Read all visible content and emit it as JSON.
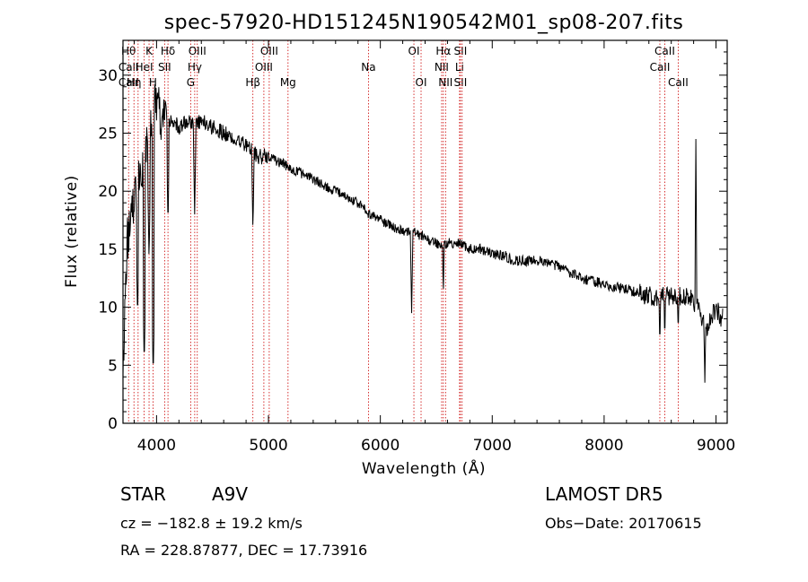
{
  "chart_data": {
    "type": "line",
    "title": "spec-57920-HD151245N190542M01_sp08-207.fits",
    "xlabel": "Wavelength (Å)",
    "ylabel": "Flux (relative)",
    "xlim": [
      3700,
      9100
    ],
    "ylim": [
      0,
      33
    ],
    "x_ticks": [
      4000,
      5000,
      6000,
      7000,
      8000,
      9000
    ],
    "y_ticks": [
      0,
      5,
      10,
      15,
      20,
      25,
      30
    ],
    "grid": false,
    "continuum": [
      [
        3700,
        4
      ],
      [
        3740,
        16
      ],
      [
        3780,
        19
      ],
      [
        3820,
        20
      ],
      [
        3860,
        21
      ],
      [
        3900,
        23
      ],
      [
        3940,
        26
      ],
      [
        3980,
        27
      ],
      [
        4020,
        27
      ],
      [
        4060,
        26
      ],
      [
        4100,
        26
      ],
      [
        4150,
        26
      ],
      [
        4200,
        25.5
      ],
      [
        4300,
        26
      ],
      [
        4400,
        26
      ],
      [
        4500,
        25.5
      ],
      [
        4600,
        25
      ],
      [
        4700,
        24.5
      ],
      [
        4800,
        24
      ],
      [
        4900,
        23
      ],
      [
        5000,
        23
      ],
      [
        5100,
        22.5
      ],
      [
        5200,
        22
      ],
      [
        5300,
        21.5
      ],
      [
        5400,
        21
      ],
      [
        5500,
        20.5
      ],
      [
        5600,
        20
      ],
      [
        5700,
        19.5
      ],
      [
        5800,
        19
      ],
      [
        5900,
        18
      ],
      [
        6000,
        17.5
      ],
      [
        6100,
        17
      ],
      [
        6200,
        16.5
      ],
      [
        6300,
        16.5
      ],
      [
        6400,
        16
      ],
      [
        6500,
        15.5
      ],
      [
        6600,
        15.5
      ],
      [
        6700,
        15.5
      ],
      [
        6800,
        15
      ],
      [
        6900,
        15
      ],
      [
        7000,
        14.5
      ],
      [
        7100,
        14.5
      ],
      [
        7200,
        14
      ],
      [
        7400,
        14
      ],
      [
        7600,
        13.5
      ],
      [
        7800,
        12.5
      ],
      [
        8000,
        12
      ],
      [
        8200,
        11.5
      ],
      [
        8400,
        11
      ],
      [
        8600,
        11
      ],
      [
        8700,
        11
      ],
      [
        8800,
        10.5
      ],
      [
        8850,
        10
      ],
      [
        8900,
        8
      ],
      [
        8950,
        9
      ],
      [
        9000,
        10
      ],
      [
        9050,
        9
      ]
    ],
    "absorption_features": [
      {
        "x": 3830,
        "y": 9
      },
      {
        "x": 3890,
        "y": 5
      },
      {
        "x": 3933,
        "y": 14
      },
      {
        "x": 3970,
        "y": 4
      },
      {
        "x": 4102,
        "y": 17
      },
      {
        "x": 4340,
        "y": 18
      },
      {
        "x": 4861,
        "y": 16.5
      },
      {
        "x": 6280,
        "y": 9.5
      },
      {
        "x": 6563,
        "y": 11
      },
      {
        "x": 8498,
        "y": 6.5
      },
      {
        "x": 8542,
        "y": 7
      },
      {
        "x": 8662,
        "y": 7.5
      },
      {
        "x": 8900,
        "y": 3.5
      }
    ],
    "emission_features": [
      {
        "x": 8820,
        "y": 24.5
      }
    ],
    "line_markers": [
      {
        "x": 3750,
        "labels": [
          "Hθ",
          "CaII",
          "CaII"
        ]
      },
      {
        "x": 3798,
        "labels": [
          "",
          "",
          "Hη"
        ]
      },
      {
        "x": 3835,
        "labels": [
          "",
          "",
          ""
        ]
      },
      {
        "x": 3889,
        "labels": [
          "",
          "HeI",
          ""
        ]
      },
      {
        "x": 3933,
        "labels": [
          "K",
          "",
          ""
        ]
      },
      {
        "x": 3968,
        "labels": [
          "",
          "",
          "H"
        ]
      },
      {
        "x": 4072,
        "labels": [
          "",
          "SII",
          ""
        ]
      },
      {
        "x": 4102,
        "labels": [
          "Hδ",
          "",
          ""
        ]
      },
      {
        "x": 4341,
        "labels": [
          "",
          "Hγ",
          ""
        ]
      },
      {
        "x": 4305,
        "labels": [
          "",
          "",
          "G"
        ]
      },
      {
        "x": 4364,
        "labels": [
          "OIII",
          "",
          ""
        ]
      },
      {
        "x": 4861,
        "labels": [
          "",
          "",
          "Hβ"
        ]
      },
      {
        "x": 4959,
        "labels": [
          "",
          "OIII",
          ""
        ]
      },
      {
        "x": 5007,
        "labels": [
          "OIII",
          "",
          ""
        ]
      },
      {
        "x": 5175,
        "labels": [
          "",
          "",
          "Mg"
        ]
      },
      {
        "x": 5894,
        "labels": [
          "",
          "Na",
          ""
        ]
      },
      {
        "x": 6300,
        "labels": [
          "OI",
          "",
          ""
        ]
      },
      {
        "x": 6364,
        "labels": [
          "",
          "",
          "OI"
        ]
      },
      {
        "x": 6548,
        "labels": [
          "",
          "NII",
          ""
        ]
      },
      {
        "x": 6563,
        "labels": [
          "Hα",
          "",
          ""
        ]
      },
      {
        "x": 6583,
        "labels": [
          "",
          "",
          "NII"
        ]
      },
      {
        "x": 6708,
        "labels": [
          "",
          "Li",
          ""
        ]
      },
      {
        "x": 6716,
        "labels": [
          "SII",
          "",
          "SII"
        ]
      },
      {
        "x": 6731,
        "labels": [
          "",
          "",
          ""
        ]
      },
      {
        "x": 8498,
        "labels": [
          "",
          "CaII",
          ""
        ]
      },
      {
        "x": 8542,
        "labels": [
          "CaII",
          "",
          ""
        ]
      },
      {
        "x": 8662,
        "labels": [
          "",
          "",
          "CaII"
        ]
      }
    ]
  },
  "info": {
    "object_class": "STAR",
    "subclass": "A9V",
    "survey": "LAMOST DR5",
    "cz": "cz = −182.8 ± 19.2 km/s",
    "obs_date": "Obs−Date: 20170615",
    "coords": "RA = 228.87877, DEC =  17.73916"
  },
  "colors": {
    "spectrum": "#000000",
    "markers": "#cc0000",
    "frame": "#000000",
    "background": "#ffffff"
  }
}
